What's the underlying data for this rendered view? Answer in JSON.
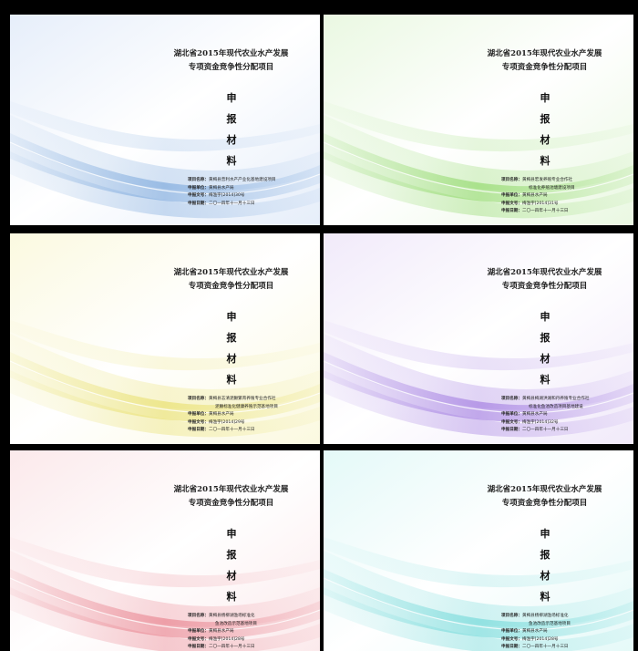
{
  "cards": [
    {
      "theme": "blue",
      "accent": "#7aa7dc",
      "light": "#e6eefa",
      "title_line1": "湖北省2015年现代农业水产发展",
      "title_line2": "专项资金竞争性分配项目",
      "apply_chars": [
        "申",
        "报",
        "材",
        "料"
      ],
      "project_label": "项目名称：",
      "project_value": "黄梅县普利水产产业化基地建设项目",
      "project_value2": "",
      "unit_label": "申报单位：",
      "unit_value": "黄梅县水产局",
      "doc_label": "申报文号：",
      "doc_value": "梅渔字[2014]30号",
      "date_label": "申报日期：",
      "date_value": "二〇一四年十一月十三日"
    },
    {
      "theme": "green",
      "accent": "#8fd868",
      "light": "#eaf8e2",
      "title_line1": "湖北省2015年现代农业水产发展",
      "title_line2": "专项资金竞争性分配项目",
      "apply_chars": [
        "申",
        "报",
        "材",
        "料"
      ],
      "project_label": "项目名称：",
      "project_value": "黄梅县宏发养殖专业合作社",
      "project_value2": "标准化养殖池塘建设项目",
      "unit_label": "申报单位：",
      "unit_value": "黄梅县水产局",
      "doc_label": "申报文号：",
      "doc_value": "梅渔字[2014]31号",
      "date_label": "申报日期：",
      "date_value": "二〇一四年十一月十三日"
    },
    {
      "theme": "yellow",
      "accent": "#e8df6a",
      "light": "#fbf9e0",
      "title_line1": "湖北省2015年现代农业水产发展",
      "title_line2": "专项资金竞争性分配项目",
      "apply_chars": [
        "申",
        "报",
        "材",
        "料"
      ],
      "project_label": "项目名称：",
      "project_value": "黄梅县志清泥鳅繁育养殖专业合作社",
      "project_value2": "泥鳅标准化健康养殖示范基地项目",
      "unit_label": "申报单位：",
      "unit_value": "黄梅县水产局",
      "doc_label": "申报文号：",
      "doc_value": "梅渔字[2014]29号",
      "date_label": "申报日期：",
      "date_value": "二〇一四年十一月十三日"
    },
    {
      "theme": "purple",
      "accent": "#a07ae0",
      "light": "#f1eafa",
      "title_line1": "湖北省2015年现代农业水产发展",
      "title_line2": "专项资金竞争性分配项目",
      "apply_chars": [
        "申",
        "报",
        "材",
        "料"
      ],
      "project_label": "项目名称：",
      "project_value": "黄梅县梅湖洪湖和丹养殖专业合作社",
      "project_value2": "标准化鱼池改造项目基地建设",
      "unit_label": "申报单位：",
      "unit_value": "黄梅县水产局",
      "doc_label": "申报文号：",
      "doc_value": "梅渔字[2014]32号",
      "date_label": "申报日期：",
      "date_value": "二〇一四年十一月十三日"
    },
    {
      "theme": "red",
      "accent": "#e8808c",
      "light": "#fbe9eb",
      "title_line1": "湖北省2015年现代农业水产发展",
      "title_line2": "专项资金竞争性分配项目",
      "apply_chars": [
        "申",
        "报",
        "材",
        "料"
      ],
      "project_label": "项目名称：",
      "project_value": "黄梅县杨柳湖渔场标准化",
      "project_value2": "鱼池改造示范基地项目",
      "unit_label": "申报单位：",
      "unit_value": "黄梅县水产局",
      "doc_label": "申报文号：",
      "doc_value": "梅渔字[2014]28号",
      "date_label": "申报日期：",
      "date_value": "二〇一四年十一月十三日"
    },
    {
      "theme": "cyan",
      "accent": "#6fd8d8",
      "light": "#e4f9f8",
      "title_line1": "湖北省2015年现代农业水产发展",
      "title_line2": "专项资金竞争性分配项目",
      "apply_chars": [
        "申",
        "报",
        "材",
        "料"
      ],
      "project_label": "项目名称：",
      "project_value": "黄梅县杨柳湖渔场标准化",
      "project_value2": "鱼池改造示范基地项目",
      "unit_label": "申报单位：",
      "unit_value": "黄梅县水产局",
      "doc_label": "申报文号：",
      "doc_value": "梅渔字[2014]28号",
      "date_label": "申报日期：",
      "date_value": "二〇一四年十一月十三日"
    }
  ]
}
